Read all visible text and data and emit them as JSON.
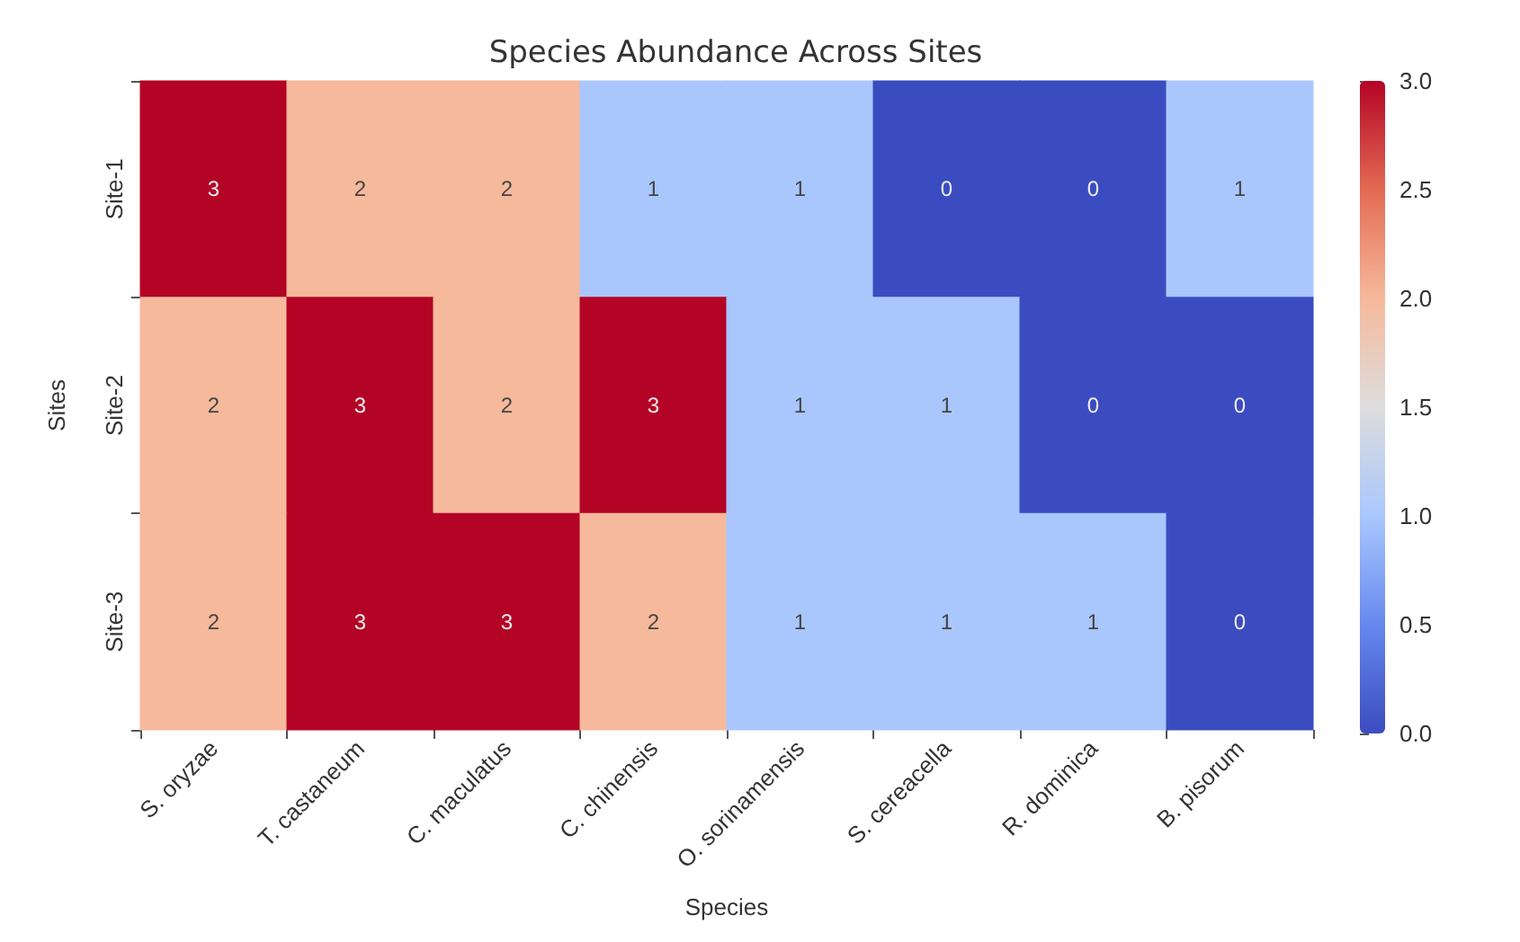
{
  "chart_data": {
    "type": "heatmap",
    "title": "Species Abundance Across Sites",
    "xlabel": "Species",
    "ylabel": "Sites",
    "categories": [
      "S. oryzae",
      "T. castaneum",
      "C. maculatus",
      "C. chinensis",
      "O. sorinamensis",
      "S. cereacella",
      "R. dominica",
      "B. pisorum"
    ],
    "y_categories": [
      "Site-1",
      "Site-2",
      "Site-3"
    ],
    "cells": [
      [
        3,
        2,
        2,
        1,
        1,
        0,
        0,
        1
      ],
      [
        2,
        3,
        2,
        3,
        1,
        1,
        0,
        0
      ],
      [
        2,
        3,
        3,
        2,
        1,
        1,
        1,
        0
      ]
    ],
    "data_labels": true,
    "clim": [
      0,
      3
    ],
    "cticks": [
      {
        "value": 0,
        "label": "0.0"
      },
      {
        "value": 0.5,
        "label": "0.5"
      },
      {
        "value": 1,
        "label": "1.0"
      },
      {
        "value": 1.5,
        "label": "1.5"
      },
      {
        "value": 2,
        "label": "2.0"
      },
      {
        "value": 2.5,
        "label": "2.5"
      },
      {
        "value": 3,
        "label": "3.0"
      }
    ]
  }
}
